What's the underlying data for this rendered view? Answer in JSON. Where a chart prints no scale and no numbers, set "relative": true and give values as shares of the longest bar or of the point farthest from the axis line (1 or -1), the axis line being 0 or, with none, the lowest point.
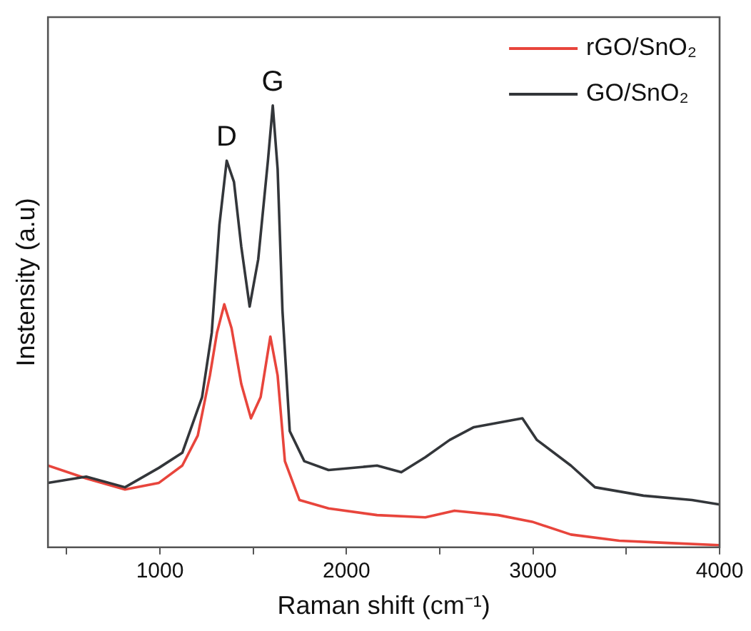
{
  "chart_data": {
    "type": "line",
    "xlabel": "Raman shift (cm⁻¹)",
    "ylabel": "Instensity (a.u)",
    "relative": true,
    "xlim": [
      400,
      4000
    ],
    "xticks": [
      {
        "value": 500,
        "label": null
      },
      1000,
      {
        "value": 1500,
        "label": null
      },
      2000,
      {
        "value": 2500,
        "label": null
      },
      3000,
      {
        "value": 3500,
        "label": null
      },
      4000
    ],
    "grid": false,
    "legend": "top right",
    "marker": "none",
    "line_style": "solid",
    "annotations": [
      {
        "text": "D",
        "x": 1358,
        "y": 0.875
      },
      {
        "text": "G",
        "x": 1605,
        "y": 1.0
      }
    ],
    "series": [
      {
        "name": "rGO/SnO₂",
        "color": "#e8453c",
        "x": [
          400,
          605,
          813,
          995,
          1120,
          1203,
          1268,
          1306,
          1345,
          1384,
          1436,
          1488,
          1540,
          1592,
          1631,
          1670,
          1748,
          1904,
          2164,
          2423,
          2579,
          2813,
          2995,
          3203,
          3462,
          3722,
          4000
        ],
        "values": [
          0.185,
          0.156,
          0.131,
          0.146,
          0.185,
          0.253,
          0.389,
          0.486,
          0.55,
          0.496,
          0.37,
          0.292,
          0.34,
          0.477,
          0.389,
          0.195,
          0.107,
          0.088,
          0.073,
          0.068,
          0.083,
          0.073,
          0.058,
          0.029,
          0.015,
          0.01,
          0.005
        ]
      },
      {
        "name": "GO/SnO₂",
        "color": "#33363a",
        "x": [
          400,
          605,
          813,
          995,
          1120,
          1226,
          1278,
          1319,
          1358,
          1397,
          1436,
          1481,
          1527,
          1579,
          1605,
          1631,
          1657,
          1696,
          1774,
          1904,
          2164,
          2294,
          2423,
          2553,
          2683,
          2813,
          2943,
          3021,
          3203,
          3332,
          3592,
          3852,
          4000
        ],
        "values": [
          0.146,
          0.16,
          0.136,
          0.18,
          0.214,
          0.34,
          0.486,
          0.73,
          0.875,
          0.827,
          0.681,
          0.545,
          0.652,
          0.875,
          1.0,
          0.856,
          0.535,
          0.263,
          0.195,
          0.175,
          0.185,
          0.17,
          0.204,
          0.243,
          0.272,
          0.282,
          0.292,
          0.243,
          0.185,
          0.136,
          0.117,
          0.107,
          0.097
        ]
      }
    ]
  }
}
